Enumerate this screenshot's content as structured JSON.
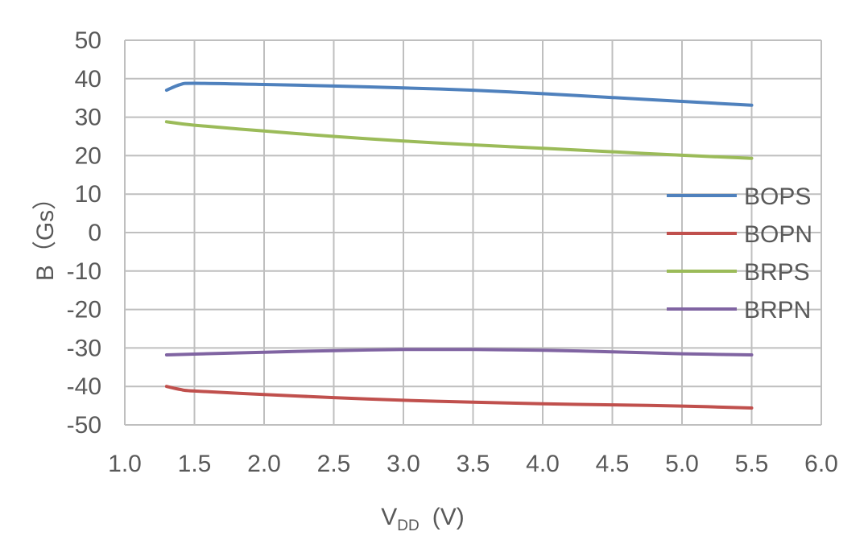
{
  "chart_data": {
    "type": "line",
    "xlabel": {
      "main": "V",
      "sub": "DD",
      "unit": "(V)"
    },
    "ylabel": "B（Gs）",
    "xlim": [
      1.0,
      6.0
    ],
    "ylim": [
      -50,
      50
    ],
    "xticks": [
      "1.0",
      "1.5",
      "2.0",
      "2.5",
      "3.0",
      "3.5",
      "4.0",
      "4.5",
      "5.0",
      "5.5",
      "6.0"
    ],
    "yticks": [
      "50",
      "40",
      "30",
      "20",
      "10",
      "0",
      "-10",
      "-20",
      "-30",
      "-40",
      "-50"
    ],
    "grid": true,
    "legend_position": "right",
    "series": [
      {
        "name": "BOPS",
        "color": "#4f81bd",
        "x": [
          1.3,
          1.4,
          1.5,
          2.0,
          2.5,
          3.0,
          3.5,
          4.0,
          4.5,
          5.0,
          5.5
        ],
        "y": [
          37.0,
          38.5,
          38.8,
          38.5,
          38.1,
          37.6,
          37.0,
          36.1,
          35.1,
          34.1,
          33.1
        ]
      },
      {
        "name": "BOPN",
        "color": "#c0504d",
        "x": [
          1.3,
          1.4,
          1.5,
          2.0,
          2.5,
          3.0,
          3.5,
          4.0,
          4.5,
          5.0,
          5.5
        ],
        "y": [
          -40.0,
          -40.8,
          -41.2,
          -42.1,
          -42.9,
          -43.6,
          -44.1,
          -44.5,
          -44.8,
          -45.1,
          -45.6
        ]
      },
      {
        "name": "BRPS",
        "color": "#9bbb59",
        "x": [
          1.3,
          1.5,
          2.0,
          2.5,
          3.0,
          3.5,
          4.0,
          4.5,
          5.0,
          5.5
        ],
        "y": [
          28.8,
          27.9,
          26.4,
          25.0,
          23.8,
          22.8,
          21.9,
          21.0,
          20.1,
          19.3
        ]
      },
      {
        "name": "BRPN",
        "color": "#8064a2",
        "x": [
          1.3,
          1.5,
          2.0,
          2.5,
          3.0,
          3.5,
          4.0,
          4.5,
          5.0,
          5.5
        ],
        "y": [
          -31.8,
          -31.6,
          -31.1,
          -30.7,
          -30.4,
          -30.4,
          -30.6,
          -31.0,
          -31.5,
          -31.8
        ]
      }
    ]
  }
}
